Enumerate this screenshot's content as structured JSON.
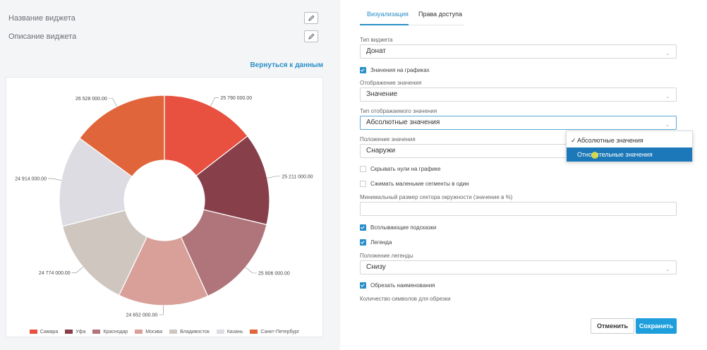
{
  "widget": {
    "name_label": "Название виджета",
    "description_label": "Описание виджета",
    "back_link": "Вернуться к данным"
  },
  "icons": {
    "edit": "pencil-icon",
    "chevron": "chevron-down-icon",
    "check": "checkmark-icon"
  },
  "colors": {
    "accent": "#2a8fc7",
    "primary_button": "#1e9fdc",
    "dropdown_highlight": "#1c78b8"
  },
  "chart_data": {
    "type": "pie",
    "variant": "donut",
    "title": "",
    "legend_position": "bottom",
    "label_position": "outside",
    "categories": [
      "Самара",
      "Уфа",
      "Краснодар",
      "Москва",
      "Владивосток",
      "Казань",
      "Санкт-Петербург"
    ],
    "values": [
      25790000,
      25211000,
      25806000,
      24652000,
      24774000,
      24914000,
      26528000
    ],
    "value_labels": [
      "25 790 000.00",
      "25 211 000.00",
      "25 806 000.00",
      "24 652 000.00",
      "24 774 000.00",
      "24 914 000.00",
      "26 528 000.00"
    ],
    "colors": [
      "#e8503f",
      "#873f4a",
      "#b0757a",
      "#d8a099",
      "#cfc6c0",
      "#dcdce2",
      "#e0653a"
    ]
  },
  "tabs": [
    {
      "label": "Визуализация",
      "active": true
    },
    {
      "label": "Права доступа",
      "active": false
    }
  ],
  "form": {
    "widget_type_label": "Тип виджета",
    "widget_type_value": "Донат",
    "values_on_charts_label": "Значения на графиках",
    "values_on_charts_checked": true,
    "value_display_label": "Отображение значения",
    "value_display_value": "Значение",
    "value_type_label": "Тип отображаемого значения",
    "value_type_value": "Абсолютные значения",
    "value_position_label": "Положение значения",
    "value_position_value": "Снаружи",
    "hide_zeros_label": "Скрывать нули на графике",
    "hide_zeros_checked": false,
    "compress_segments_label": "Сжимать маленькие сегменты в один",
    "compress_segments_checked": false,
    "min_sector_label": "Минимальный размер сектора окружности (значение в %)",
    "min_sector_value": "",
    "tooltips_label": "Всплывающие подсказки",
    "tooltips_checked": true,
    "legend_label": "Легенда",
    "legend_checked": true,
    "legend_position_label": "Положение легенды",
    "legend_position_value": "Снизу",
    "truncate_names_label": "Обрезать наименования",
    "truncate_names_checked": true,
    "truncate_chars_label": "Количество символов для обрезки"
  },
  "dropdown": {
    "options": [
      {
        "label": "Абсолютные значения",
        "selected": true
      },
      {
        "label": "Относительные значения",
        "selected": false,
        "hovered": true
      }
    ]
  },
  "buttons": {
    "cancel": "Отменить",
    "save": "Сохранить"
  }
}
